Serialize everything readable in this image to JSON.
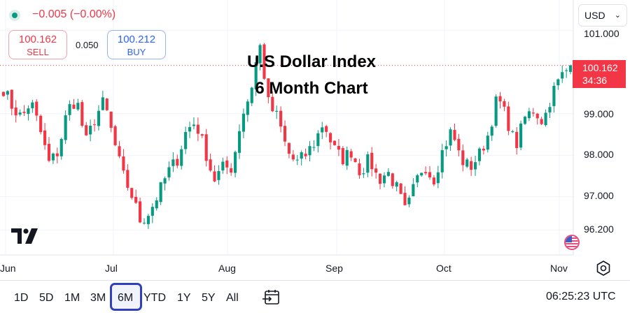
{
  "header": {
    "change": "−0.005 (−0.00%)",
    "sell_price": "100.162",
    "sell_label": "SELL",
    "spread": "0.050",
    "buy_price": "100.212",
    "buy_label": "BUY",
    "currency": "USD"
  },
  "title_line1": "U.S Dollar Index",
  "title_line2": "6 Month Chart",
  "price_tag": {
    "price": "100.162",
    "countdown": "34:36"
  },
  "timeframes": [
    "1D",
    "5D",
    "1M",
    "3M",
    "6M",
    "YTD",
    "1Y",
    "5Y",
    "All"
  ],
  "active_timeframe": "6M",
  "clock": "06:25:23 UTC",
  "colors": {
    "up": "#089981",
    "down": "#f23645",
    "accent": "#2f3fbe"
  },
  "icons": {
    "status": "status-dot-icon",
    "calendar": "date-range-icon",
    "settings": "gear-icon",
    "logo": "tradingview-logo-icon",
    "flag": "us-flag-icon"
  },
  "chart_data": {
    "type": "candlestick",
    "y_ticks": [
      "101.000",
      "99.000",
      "98.000",
      "97.000",
      "96.200"
    ],
    "y_tick_values": [
      101.0,
      99.0,
      98.0,
      97.0,
      96.2
    ],
    "x_ticks": [
      "Jun",
      "Jul",
      "Aug",
      "Sep",
      "Oct",
      "Nov"
    ],
    "last_price": 100.162,
    "ylim": [
      95.6,
      101.4
    ],
    "series": [
      {
        "date": "Jun 10",
        "close": 99.6
      },
      {
        "date": "Jun 13",
        "close": 99.15
      },
      {
        "date": "Jun 17",
        "close": 98.9
      },
      {
        "date": "Jun 20",
        "close": 99.3
      },
      {
        "date": "Jun 24",
        "close": 98.6
      },
      {
        "date": "Jun 26",
        "close": 97.8
      },
      {
        "date": "Jun 28",
        "close": 98.1
      },
      {
        "date": "Jul 1",
        "close": 99.1
      },
      {
        "date": "Jul 3",
        "close": 99.35
      },
      {
        "date": "Jul 5",
        "close": 98.3
      },
      {
        "date": "Jul 9",
        "close": 98.9
      },
      {
        "date": "Jul 11",
        "close": 99.3
      },
      {
        "date": "Jul 15",
        "close": 98.4
      },
      {
        "date": "Jul 18",
        "close": 97.55
      },
      {
        "date": "Jul 22",
        "close": 97.05
      },
      {
        "date": "Jul 24",
        "close": 96.4
      },
      {
        "date": "Jul 26",
        "close": 96.65
      },
      {
        "date": "Jul 30",
        "close": 97.1
      },
      {
        "date": "Aug 2",
        "close": 97.6
      },
      {
        "date": "Aug 6",
        "close": 97.9
      },
      {
        "date": "Aug 9",
        "close": 98.6
      },
      {
        "date": "Aug 13",
        "close": 98.8
      },
      {
        "date": "Aug 15",
        "close": 98.15
      },
      {
        "date": "Aug 19",
        "close": 97.4
      },
      {
        "date": "Aug 21",
        "close": 97.7
      },
      {
        "date": "Aug 23",
        "close": 97.7
      },
      {
        "date": "Aug 27",
        "close": 98.9
      },
      {
        "date": "Aug 29",
        "close": 99.5
      },
      {
        "date": "Aug 30",
        "close": 100.7
      },
      {
        "date": "Sep 1",
        "close": 99.2
      },
      {
        "date": "Sep 3",
        "close": 98.9
      },
      {
        "date": "Sep 5",
        "close": 98.1
      },
      {
        "date": "Sep 9",
        "close": 97.8
      },
      {
        "date": "Sep 12",
        "close": 98.0
      },
      {
        "date": "Sep 16",
        "close": 98.3
      },
      {
        "date": "Sep 18",
        "close": 98.8
      },
      {
        "date": "Sep 20",
        "close": 98.2
      },
      {
        "date": "Sep 24",
        "close": 97.9
      },
      {
        "date": "Sep 26",
        "close": 98.1
      },
      {
        "date": "Sep 30",
        "close": 97.6
      },
      {
        "date": "Oct 2",
        "close": 97.9
      },
      {
        "date": "Oct 4",
        "close": 97.4
      },
      {
        "date": "Oct 8",
        "close": 97.6
      },
      {
        "date": "Oct 10",
        "close": 97.2
      },
      {
        "date": "Oct 15",
        "close": 96.6
      },
      {
        "date": "Oct 17",
        "close": 97.3
      },
      {
        "date": "Oct 21",
        "close": 97.8
      },
      {
        "date": "Oct 23",
        "close": 97.4
      },
      {
        "date": "Oct 25",
        "close": 98.1
      },
      {
        "date": "Oct 29",
        "close": 98.6
      },
      {
        "date": "Oct 31",
        "close": 97.9
      },
      {
        "date": "Nov 4",
        "close": 97.7
      },
      {
        "date": "Nov 6",
        "close": 98.0
      },
      {
        "date": "Nov 8",
        "close": 98.5
      },
      {
        "date": "Nov 12",
        "close": 99.4
      },
      {
        "date": "Nov 14",
        "close": 98.9
      },
      {
        "date": "Nov 18",
        "close": 98.2
      },
      {
        "date": "Nov 20",
        "close": 98.9
      },
      {
        "date": "Nov 22",
        "close": 99.1
      },
      {
        "date": "Nov 26",
        "close": 98.8
      },
      {
        "date": "Nov 28",
        "close": 99.5
      },
      {
        "date": "Dec 2",
        "close": 99.9
      },
      {
        "date": "Dec 4",
        "close": 100.162
      }
    ]
  }
}
